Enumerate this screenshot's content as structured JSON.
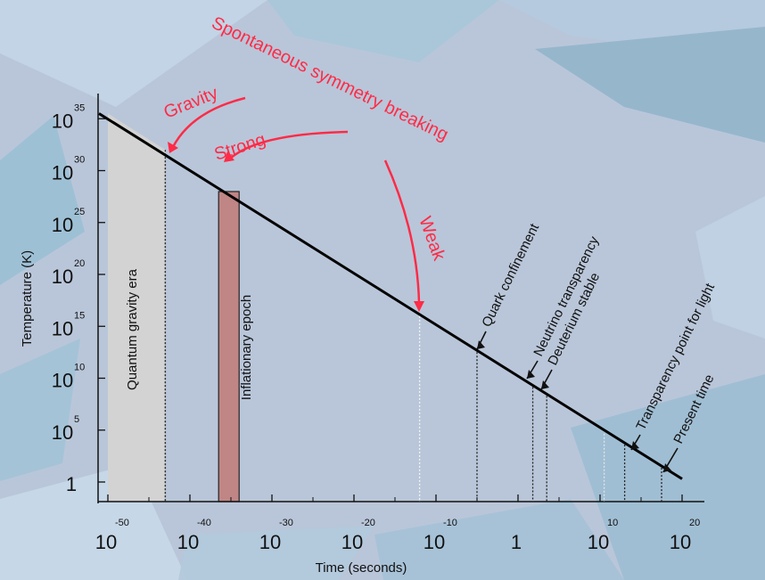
{
  "chart_data": {
    "type": "line",
    "title": "",
    "xlabel": "Time (seconds)",
    "ylabel": "Temperature (K)",
    "x_scale": "log",
    "y_scale": "log",
    "xlim_exp": [
      -51,
      21
    ],
    "ylim_exp": [
      -1,
      36
    ],
    "x_ticks": [
      {
        "exp": -50,
        "base": "10",
        "sup": "-50"
      },
      {
        "exp": -40,
        "base": "10",
        "sup": "-40"
      },
      {
        "exp": -30,
        "base": "10",
        "sup": "-30"
      },
      {
        "exp": -20,
        "base": "10",
        "sup": "-20"
      },
      {
        "exp": -10,
        "base": "10",
        "sup": "-10"
      },
      {
        "exp": 0,
        "base": "1",
        "sup": ""
      },
      {
        "exp": 10,
        "base": "10",
        "sup": "10"
      },
      {
        "exp": 20,
        "base": "10",
        "sup": "20"
      }
    ],
    "y_ticks": [
      {
        "exp": 35,
        "base": "10",
        "sup": "35"
      },
      {
        "exp": 30,
        "base": "10",
        "sup": "30"
      },
      {
        "exp": 25,
        "base": "10",
        "sup": "25"
      },
      {
        "exp": 20,
        "base": "10",
        "sup": "20"
      },
      {
        "exp": 15,
        "base": "10",
        "sup": "15"
      },
      {
        "exp": 10,
        "base": "10",
        "sup": "10"
      },
      {
        "exp": 5,
        "base": "10",
        "sup": "5"
      },
      {
        "exp": 0,
        "base": "1",
        "sup": ""
      }
    ],
    "series": [
      {
        "x_exp": [
          -50,
          20
        ],
        "y_exp": [
          35.5,
          0.3
        ]
      }
    ],
    "eras": [
      {
        "label": "Quantum gravity era",
        "x_from_exp": -50,
        "x_to_exp": -43,
        "color": "#d3d3d3"
      },
      {
        "label": "Inflationary epoch",
        "x_from_exp": -36.5,
        "x_to_exp": -34,
        "color": "#c08585"
      }
    ],
    "events": [
      {
        "label": "Quark confinement",
        "x_exp": -5
      },
      {
        "label": "Neutrino transparency",
        "x_exp": 1.8
      },
      {
        "label": "Deuterium stable",
        "x_exp": 3.5
      },
      {
        "label": "Transparency point for light",
        "x_exp": 13
      },
      {
        "label": "Present time",
        "x_exp": 17.5
      }
    ],
    "symmetry_breaking": {
      "title": "Spontaneous symmetry breaking",
      "forces": [
        {
          "label": "Gravity",
          "x_exp": -43
        },
        {
          "label": "Strong",
          "x_exp": -36
        },
        {
          "label": "Weak",
          "x_exp": -12
        }
      ]
    }
  },
  "colors": {
    "background": "#b9c6d9",
    "line": "#000000",
    "annotation_red": "#ff2b47",
    "gravity_era": "#d3d3d3",
    "inflation": "#c08585"
  }
}
